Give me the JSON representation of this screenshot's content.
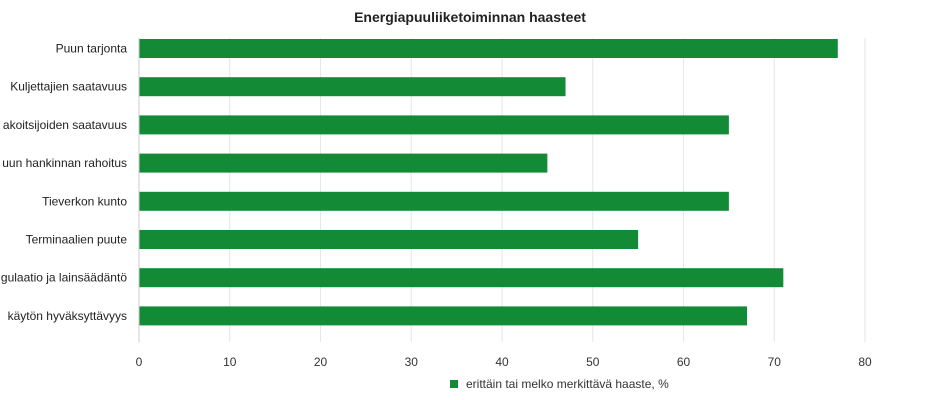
{
  "chart_data": {
    "type": "bar",
    "orientation": "horizontal",
    "title": "Energiapuuliiketoiminnan haasteet",
    "categories": [
      "Puun tarjonta",
      "Kuljettajien saatavuus",
      "akoitsijoiden saatavuus",
      "uun hankinnan rahoitus",
      "Tieverkon kunto",
      "Terminaalien puute",
      "gulaatio ja lainsäädäntö",
      "käytön hyväksyttävyys"
    ],
    "series": [
      {
        "name": "erittäin tai melko merkittävä haaste, %",
        "values": [
          77,
          47,
          65,
          45,
          65,
          55,
          71,
          67
        ]
      }
    ],
    "x_ticks": [
      "0",
      "10",
      "20",
      "30",
      "40",
      "50",
      "60",
      "70",
      "80"
    ],
    "xlim": [
      0,
      80
    ],
    "grid": "vertical",
    "legend_position": "bottom-center",
    "colors": {
      "bar": "#138a36",
      "grid": "#e6e6e6",
      "axis": "#cccccc"
    }
  }
}
